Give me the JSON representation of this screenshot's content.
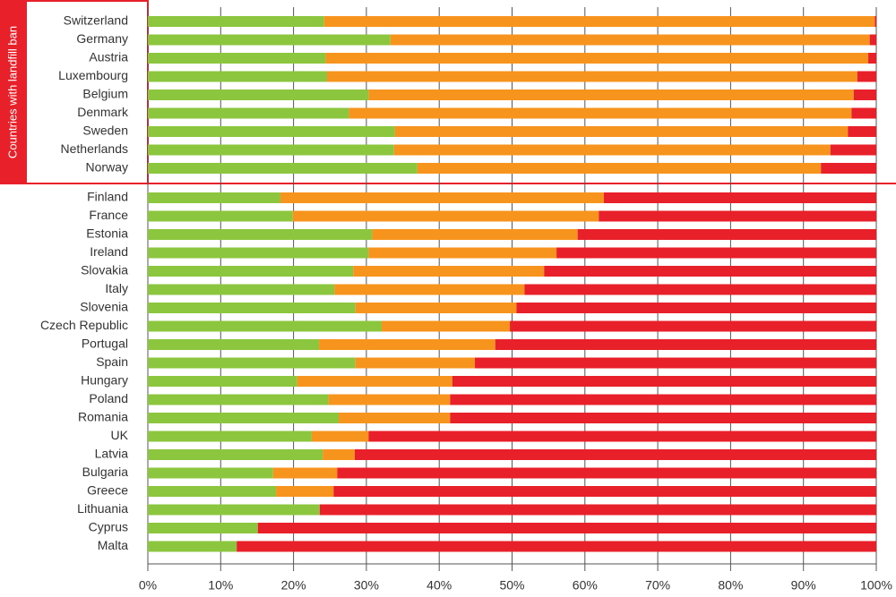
{
  "chart_data": {
    "type": "stacked-bar",
    "annotation": "Countries with landfill ban",
    "categories": [
      "Switzerland",
      "Germany",
      "Austria",
      "Luxembourg",
      "Belgium",
      "Denmark",
      "Sweden",
      "Netherlands",
      "Norway",
      "Finland",
      "France",
      "Estonia",
      "Ireland",
      "Slovakia",
      "Italy",
      "Slovenia",
      "Czech Republic",
      "Portugal",
      "Spain",
      "Hungary",
      "Poland",
      "Romania",
      "UK",
      "Latvia",
      "Bulgaria",
      "Greece",
      "Lithuania",
      "Cyprus",
      "Malta"
    ],
    "series": [
      {
        "color": "#8cc63f",
        "values": [
          24.2,
          33.3,
          24.4,
          24.6,
          30.3,
          27.6,
          33.9,
          33.8,
          37.0,
          18.2,
          19.9,
          30.8,
          30.3,
          28.2,
          25.6,
          28.5,
          32.1,
          23.5,
          28.5,
          20.5,
          24.8,
          26.2,
          22.5,
          24.0,
          17.2,
          17.6,
          23.6,
          15.1,
          12.2
        ]
      },
      {
        "color": "#f7941d",
        "values": [
          75.6,
          65.8,
          74.5,
          72.8,
          66.6,
          69.0,
          62.2,
          59.9,
          55.4,
          44.4,
          42.0,
          28.2,
          25.8,
          26.2,
          26.1,
          22.1,
          17.6,
          24.2,
          16.4,
          21.3,
          16.7,
          15.3,
          7.8,
          4.4,
          8.8,
          7.9,
          0,
          0,
          0
        ]
      },
      {
        "color": "#e8202a",
        "values": [
          0.2,
          0.9,
          1.1,
          2.6,
          3.1,
          3.4,
          3.9,
          6.3,
          7.6,
          37.4,
          38.1,
          41.0,
          43.9,
          45.6,
          48.3,
          49.4,
          50.3,
          52.3,
          55.1,
          58.2,
          58.5,
          58.5,
          69.7,
          71.6,
          74.0,
          74.5,
          76.4,
          84.9,
          87.8
        ]
      }
    ],
    "xlim": [
      0,
      100
    ],
    "xticks": [
      {
        "value": 0,
        "label": "0%"
      },
      {
        "value": 10,
        "label": "10%"
      },
      {
        "value": 20,
        "label": "20%"
      },
      {
        "value": 30,
        "label": "30%"
      },
      {
        "value": 40,
        "label": "40%"
      },
      {
        "value": 50,
        "label": "50%"
      },
      {
        "value": 60,
        "label": "60%"
      },
      {
        "value": 70,
        "label": "70%"
      },
      {
        "value": 80,
        "label": "80%"
      },
      {
        "value": 90,
        "label": "90%"
      },
      {
        "value": 100,
        "label": "100%"
      }
    ],
    "grid": true
  }
}
